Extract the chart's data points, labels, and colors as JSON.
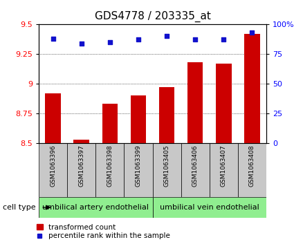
{
  "title": "GDS4778 / 203335_at",
  "samples": [
    "GSM1063396",
    "GSM1063397",
    "GSM1063398",
    "GSM1063399",
    "GSM1063405",
    "GSM1063406",
    "GSM1063407",
    "GSM1063408"
  ],
  "bar_values": [
    8.92,
    8.53,
    8.83,
    8.9,
    8.97,
    9.18,
    9.17,
    9.42
  ],
  "dot_values": [
    88,
    84,
    85,
    87,
    90,
    87,
    87,
    93
  ],
  "ylim_left": [
    8.5,
    9.5
  ],
  "ylim_right": [
    0,
    100
  ],
  "yticks_left": [
    8.5,
    8.75,
    9.0,
    9.25,
    9.5
  ],
  "yticks_right": [
    0,
    25,
    50,
    75,
    100
  ],
  "ytick_labels_left": [
    "8.5",
    "8.75",
    "9",
    "9.25",
    "9.5"
  ],
  "ytick_labels_right": [
    "0",
    "25",
    "50",
    "75",
    "100%"
  ],
  "bar_color": "#cc0000",
  "dot_color": "#1111cc",
  "bar_width": 0.55,
  "cell_type_groups": [
    {
      "label": "umbilical artery endothelial",
      "start": 0,
      "end": 4,
      "color": "#90ee90"
    },
    {
      "label": "umbilical vein endothelial",
      "start": 4,
      "end": 8,
      "color": "#90ee90"
    }
  ],
  "cell_type_label": "cell type",
  "legend_bar_label": "transformed count",
  "legend_dot_label": "percentile rank within the sample",
  "grid_color": "#000000",
  "label_area_color": "#c8c8c8",
  "title_fontsize": 11,
  "tick_fontsize": 8,
  "sample_fontsize": 6.5,
  "celltype_fontsize": 8,
  "legend_fontsize": 7.5
}
